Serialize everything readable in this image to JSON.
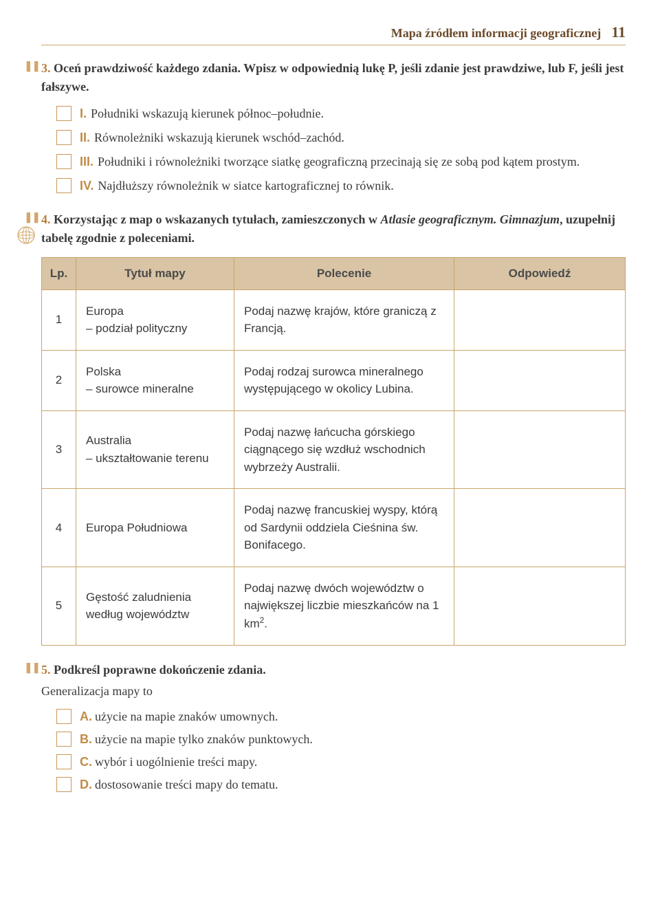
{
  "header": {
    "title": "Mapa źródłem informacji geograficznej",
    "page_number": "11"
  },
  "task3": {
    "number": "3.",
    "text": "Oceń prawdziwość każdego zdania. Wpisz w odpowiednią lukę P, jeśli zdanie jest prawdziwe, lub F, jeśli jest fałszywe.",
    "statements": [
      {
        "roman": "I.",
        "text": "Południki wskazują kierunek północ–południe."
      },
      {
        "roman": "II.",
        "text": "Równoleżniki wskazują kierunek wschód–zachód."
      },
      {
        "roman": "III.",
        "text": "Południki i równoleżniki tworzące siatkę geograficzną przecinają się ze sobą pod kątem prostym."
      },
      {
        "roman": "IV.",
        "text": "Najdłuższy równoleżnik w siatce kartograficznej to równik."
      }
    ]
  },
  "task4": {
    "number": "4.",
    "text_a": "Korzystając z map o wskazanych tytułach, zamieszczonych w ",
    "text_italic": "Atlasie geograficznym. Gimnazjum",
    "text_b": ", uzupełnij tabelę zgodnie z poleceniami.",
    "table": {
      "headers": {
        "lp": "Lp.",
        "title": "Tytuł mapy",
        "polecenie": "Polecenie",
        "answer": "Odpowiedź"
      },
      "rows": [
        {
          "lp": "1",
          "title": "Europa\n– podział polityczny",
          "polecenie": "Podaj nazwę krajów, które graniczą z Francją."
        },
        {
          "lp": "2",
          "title": "Polska\n– surowce mineralne",
          "polecenie": "Podaj rodzaj surowca mineralnego występującego w okolicy Lubina."
        },
        {
          "lp": "3",
          "title": "Australia\n– ukształtowanie terenu",
          "polecenie": "Podaj nazwę łańcucha górskiego ciągnącego się wzdłuż wschodnich wybrzeży Australii."
        },
        {
          "lp": "4",
          "title": "Europa Południowa",
          "polecenie": "Podaj nazwę francuskiej wyspy, którą od Sardynii oddziela Cieśnina św. Bonifacego."
        },
        {
          "lp": "5",
          "title": "Gęstość zaludnienia według województw",
          "polecenie": "Podaj nazwę dwóch województw o największej liczbie mieszkańców na 1 km²."
        }
      ]
    }
  },
  "task5": {
    "number": "5.",
    "text": "Podkreśl poprawne dokończenie zdania.",
    "intro": "Generalizacja mapy to",
    "options": [
      {
        "letter": "A.",
        "text": "użycie na mapie znaków umownych."
      },
      {
        "letter": "B.",
        "text": "użycie na mapie tylko znaków punktowych."
      },
      {
        "letter": "C.",
        "text": "wybór i uogólnienie treści mapy."
      },
      {
        "letter": "D.",
        "text": "dostosowanie treści mapy do tematu."
      }
    ]
  }
}
